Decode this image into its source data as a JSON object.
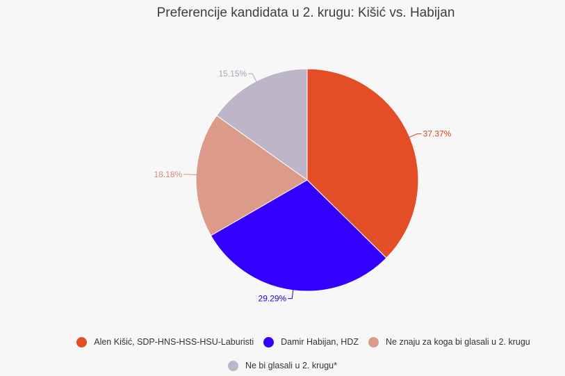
{
  "chart_data": {
    "type": "pie",
    "title": "Preferencije kandidata u 2. krugu: Kišić vs. Habijan",
    "slices": [
      {
        "label": "Alen Kišić, SDP-HNS-HSS-HSU-Laburisti",
        "value": 37.37,
        "value_label": "37.37%",
        "color": "#e34e26"
      },
      {
        "label": "Damir Habijan, HDZ",
        "value": 29.29,
        "value_label": "29.29%",
        "color": "#3300ff"
      },
      {
        "label": "Ne znaju za koga bi glasali u 2. krugu",
        "value": 18.18,
        "value_label": "18.18%",
        "color": "#db9a8a"
      },
      {
        "label": "Ne bi glasali u 2. krugu*",
        "value": 15.15,
        "value_label": "15.15%",
        "color": "#bdb5c8"
      }
    ],
    "label_text_colors": [
      "#d2461f",
      "#2200cc",
      "#d08e7e",
      "#aaa3b5"
    ]
  }
}
